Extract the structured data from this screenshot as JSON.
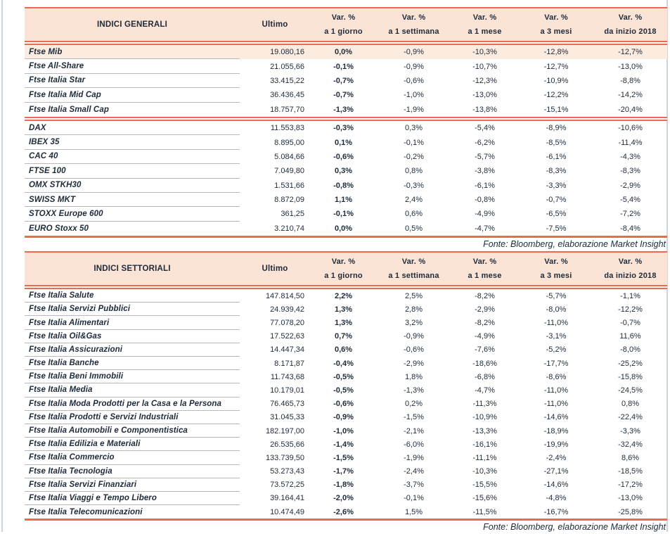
{
  "colors": {
    "accent": "#ec6a4d",
    "header_bg": "#fbe3d5",
    "highlight_row_bg": "#fcebdf",
    "text": "#1d2b3a",
    "row_separator": "#b7bbbf",
    "page_border": "#ccd6e1"
  },
  "column_headers": {
    "ultimo": "Ultimo",
    "vars": [
      {
        "top": "Var. %",
        "bottom": "a 1 giorno"
      },
      {
        "top": "Var. %",
        "bottom": "a 1 settimana"
      },
      {
        "top": "Var. %",
        "bottom": "a 1 mese"
      },
      {
        "top": "Var. %",
        "bottom": "a 3 mesi"
      },
      {
        "top": "Var. %",
        "bottom": "da inizio 2018"
      }
    ]
  },
  "tables": [
    {
      "title": "INDICI GENERALI",
      "source_note": "Fonte: Bloomberg, elaborazione Market Insight",
      "groups": [
        {
          "rows": [
            {
              "name": "Ftse Mib",
              "highlight": true,
              "ultimo": "19.080,16",
              "vars": [
                "0,0%",
                "-0,9%",
                "-10,3%",
                "-12,8%",
                "-12,7%"
              ]
            },
            {
              "name": "Ftse All-Share",
              "ultimo": "21.055,66",
              "vars": [
                "-0,1%",
                "-0,9%",
                "-10,7%",
                "-12,7%",
                "-13,0%"
              ]
            },
            {
              "name": "Ftse Italia Star",
              "ultimo": "33.415,22",
              "vars": [
                "-0,7%",
                "-0,6%",
                "-12,3%",
                "-10,9%",
                "-8,8%"
              ]
            },
            {
              "name": "Ftse Italia Mid Cap",
              "ultimo": "36.436,45",
              "vars": [
                "-0,7%",
                "-1,0%",
                "-13,0%",
                "-12,2%",
                "-14,2%"
              ]
            },
            {
              "name": "Ftse Italia Small Cap",
              "ultimo": "18.757,70",
              "vars": [
                "-1,3%",
                "-1,9%",
                "-13,8%",
                "-15,1%",
                "-20,4%"
              ]
            }
          ]
        },
        {
          "rows": [
            {
              "name": "DAX",
              "ultimo": "11.553,83",
              "vars": [
                "-0,3%",
                "0,3%",
                "-5,4%",
                "-8,9%",
                "-10,6%"
              ]
            },
            {
              "name": "IBEX 35",
              "ultimo": "8.895,00",
              "vars": [
                "0,1%",
                "-0,1%",
                "-6,2%",
                "-8,5%",
                "-11,4%"
              ]
            },
            {
              "name": "CAC 40",
              "ultimo": "5.084,66",
              "vars": [
                "-0,6%",
                "-0,2%",
                "-5,7%",
                "-6,1%",
                "-4,3%"
              ]
            },
            {
              "name": "FTSE 100",
              "ultimo": "7.049,80",
              "vars": [
                "0,3%",
                "0,8%",
                "-3,8%",
                "-8,3%",
                "-8,3%"
              ]
            },
            {
              "name": "OMX STKH30",
              "ultimo": "1.531,66",
              "vars": [
                "-0,8%",
                "-0,3%",
                "-6,1%",
                "-3,3%",
                "-2,9%"
              ]
            },
            {
              "name": "SWISS MKT",
              "ultimo": "8.872,09",
              "vars": [
                "1,1%",
                "2,4%",
                "-0,8%",
                "-0,7%",
                "-5,4%"
              ]
            },
            {
              "name": "STOXX Europe 600",
              "ultimo": "361,25",
              "vars": [
                "-0,1%",
                "0,6%",
                "-4,9%",
                "-6,5%",
                "-7,2%"
              ]
            },
            {
              "name": "EURO Stoxx 50",
              "ultimo": "3.210,74",
              "vars": [
                "0,0%",
                "0,5%",
                "-4,7%",
                "-7,5%",
                "-8,4%"
              ]
            }
          ]
        }
      ]
    },
    {
      "title": "INDICI SETTORIALI",
      "source_note": "Fonte: Bloomberg, elaborazione Market Insight",
      "groups": [
        {
          "rows": [
            {
              "name": "Ftse Italia Salute",
              "ultimo": "147.814,50",
              "vars": [
                "2,2%",
                "2,5%",
                "-8,2%",
                "-5,7%",
                "-1,1%"
              ]
            },
            {
              "name": "Ftse Italia Servizi Pubblici",
              "ultimo": "24.939,42",
              "vars": [
                "1,3%",
                "2,8%",
                "-2,9%",
                "-8,0%",
                "-12,2%"
              ]
            },
            {
              "name": "Ftse Italia Alimentari",
              "ultimo": "77.078,20",
              "vars": [
                "1,3%",
                "3,2%",
                "-8,2%",
                "-11,0%",
                "-0,7%"
              ]
            },
            {
              "name": "Ftse Italia Oil&Gas",
              "ultimo": "17.522,63",
              "vars": [
                "0,7%",
                "-0,9%",
                "-4,9%",
                "-3,1%",
                "11,6%"
              ]
            },
            {
              "name": "Ftse Italia Assicurazioni",
              "ultimo": "14.447,34",
              "vars": [
                "0,6%",
                "-0,6%",
                "-7,6%",
                "-5,2%",
                "-8,0%"
              ]
            },
            {
              "name": "Ftse Italia Banche",
              "ultimo": "8.171,87",
              "vars": [
                "-0,4%",
                "-2,9%",
                "-18,6%",
                "-17,7%",
                "-25,2%"
              ]
            },
            {
              "name": "Ftse Italia Beni Immobili",
              "ultimo": "11.743,68",
              "vars": [
                "-0,5%",
                "1,8%",
                "-6,8%",
                "-8,6%",
                "-15,8%"
              ]
            },
            {
              "name": "Ftse Italia Media",
              "ultimo": "10.179,01",
              "vars": [
                "-0,5%",
                "-1,3%",
                "-4,7%",
                "-11,0%",
                "-24,5%"
              ]
            },
            {
              "name": "Ftse Italia Moda Prodotti per la Casa e la Persona",
              "ultimo": "76.465,73",
              "vars": [
                "-0,6%",
                "0,2%",
                "-11,3%",
                "-11,0%",
                "0,8%"
              ]
            },
            {
              "name": "Ftse Italia Prodotti e Servizi Industriali",
              "ultimo": "31.045,33",
              "vars": [
                "-0,9%",
                "-1,5%",
                "-10,9%",
                "-14,6%",
                "-22,4%"
              ]
            },
            {
              "name": "Ftse Italia Automobili e Componentistica",
              "ultimo": "182.197,00",
              "vars": [
                "-1,0%",
                "-2,1%",
                "-13,3%",
                "-18,9%",
                "-3,3%"
              ]
            },
            {
              "name": "Ftse Italia Edilizia e Materiali",
              "ultimo": "26.535,66",
              "vars": [
                "-1,4%",
                "-6,0%",
                "-16,1%",
                "-19,9%",
                "-32,4%"
              ]
            },
            {
              "name": "Ftse Italia Commercio",
              "ultimo": "133.739,50",
              "vars": [
                "-1,5%",
                "-1,9%",
                "-11,1%",
                "-2,4%",
                "8,6%"
              ]
            },
            {
              "name": "Ftse Italia Tecnologia",
              "ultimo": "53.273,43",
              "vars": [
                "-1,7%",
                "-2,4%",
                "-10,3%",
                "-27,1%",
                "-18,5%"
              ]
            },
            {
              "name": "Ftse Italia Servizi Finanziari",
              "ultimo": "73.572,25",
              "vars": [
                "-1,8%",
                "-3,7%",
                "-15,5%",
                "-14,6%",
                "-17,2%"
              ]
            },
            {
              "name": "Ftse Italia Viaggi e Tempo Libero",
              "ultimo": "39.164,41",
              "vars": [
                "-2,0%",
                "-0,1%",
                "-15,6%",
                "-4,8%",
                "-13,0%"
              ]
            },
            {
              "name": "Ftse Italia Telecomunicazioni",
              "ultimo": "10.474,49",
              "vars": [
                "-2,6%",
                "1,5%",
                "-11,5%",
                "-16,7%",
                "-25,8%"
              ]
            }
          ]
        }
      ]
    }
  ]
}
